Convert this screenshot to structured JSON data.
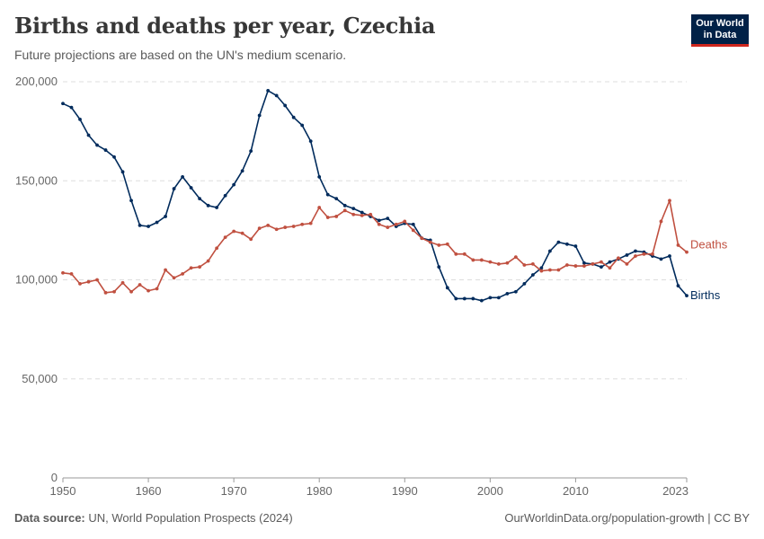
{
  "header": {
    "title": "Births and deaths per year, Czechia",
    "subtitle": "Future projections are based on the UN's medium scenario."
  },
  "logo": {
    "line1": "Our World",
    "line2": "in Data"
  },
  "footer": {
    "source_label": "Data source:",
    "source_text": "UN, World Population Prospects (2024)",
    "url_text": "OurWorldinData.org/population-growth | CC BY"
  },
  "colors": {
    "births": "#002b5c",
    "deaths": "#c05040",
    "grid": "#dddddd",
    "axis": "#999999"
  },
  "chart_data": {
    "type": "line",
    "title": "Births and deaths per year, Czechia",
    "subtitle": "Future projections are based on the UN's medium scenario.",
    "xlim": [
      1950,
      2023
    ],
    "ylim": [
      0,
      200000
    ],
    "y_ticks": [
      0,
      50000,
      100000,
      150000,
      200000
    ],
    "y_tick_labels": [
      "0",
      "50,000",
      "100,000",
      "150,000",
      "200,000"
    ],
    "x_ticks": [
      1950,
      1960,
      1970,
      1980,
      1990,
      2000,
      2010,
      2023
    ],
    "x_tick_labels": [
      "1950",
      "1960",
      "1970",
      "1980",
      "1990",
      "2000",
      "2010",
      "2023"
    ],
    "grid": "horizontal dashed",
    "x": [
      1950,
      1951,
      1952,
      1953,
      1954,
      1955,
      1956,
      1957,
      1958,
      1959,
      1960,
      1961,
      1962,
      1963,
      1964,
      1965,
      1966,
      1967,
      1968,
      1969,
      1970,
      1971,
      1972,
      1973,
      1974,
      1975,
      1976,
      1977,
      1978,
      1979,
      1980,
      1981,
      1982,
      1983,
      1984,
      1985,
      1986,
      1987,
      1988,
      1989,
      1990,
      1991,
      1992,
      1993,
      1994,
      1995,
      1996,
      1997,
      1998,
      1999,
      2000,
      2001,
      2002,
      2003,
      2004,
      2005,
      2006,
      2007,
      2008,
      2009,
      2010,
      2011,
      2012,
      2013,
      2014,
      2015,
      2016,
      2017,
      2018,
      2019,
      2020,
      2021,
      2022,
      2023
    ],
    "series": [
      {
        "name": "Births",
        "values": [
          189000,
          187000,
          181000,
          173000,
          168000,
          165500,
          162000,
          154500,
          140000,
          127500,
          127000,
          129000,
          132000,
          146000,
          152000,
          146500,
          141000,
          137500,
          136500,
          142500,
          148000,
          155000,
          165000,
          183000,
          195500,
          193000,
          188000,
          182000,
          178000,
          170000,
          152000,
          143000,
          141000,
          137500,
          136000,
          134000,
          132000,
          130000,
          131000,
          127000,
          128500,
          128000,
          121000,
          120000,
          106500,
          96000,
          90500,
          90500,
          90500,
          89500,
          91000,
          91000,
          93000,
          94000,
          98000,
          102500,
          106000,
          114500,
          119000,
          118000,
          117000,
          108500,
          108000,
          106500,
          109000,
          110500,
          112500,
          114500,
          114000,
          112000,
          110500,
          112000,
          97000,
          92000
        ]
      },
      {
        "name": "Deaths",
        "values": [
          103500,
          103000,
          98000,
          99000,
          100000,
          93500,
          94000,
          98500,
          94000,
          97500,
          94500,
          95500,
          105000,
          101000,
          103000,
          106000,
          106500,
          109500,
          116000,
          121500,
          124500,
          123500,
          120500,
          126000,
          127500,
          125500,
          126500,
          127000,
          128000,
          128500,
          136500,
          131500,
          132000,
          135000,
          133000,
          132500,
          133000,
          128000,
          126500,
          128000,
          129500,
          125000,
          121000,
          119000,
          117500,
          118000,
          113000,
          113000,
          110000,
          110000,
          109000,
          108000,
          108500,
          111500,
          107500,
          108000,
          104500,
          105000,
          105000,
          107500,
          107000,
          107000,
          108000,
          109000,
          106000,
          111000,
          108000,
          112000,
          113000,
          113000,
          129500,
          140000,
          117500,
          114000
        ]
      }
    ]
  }
}
